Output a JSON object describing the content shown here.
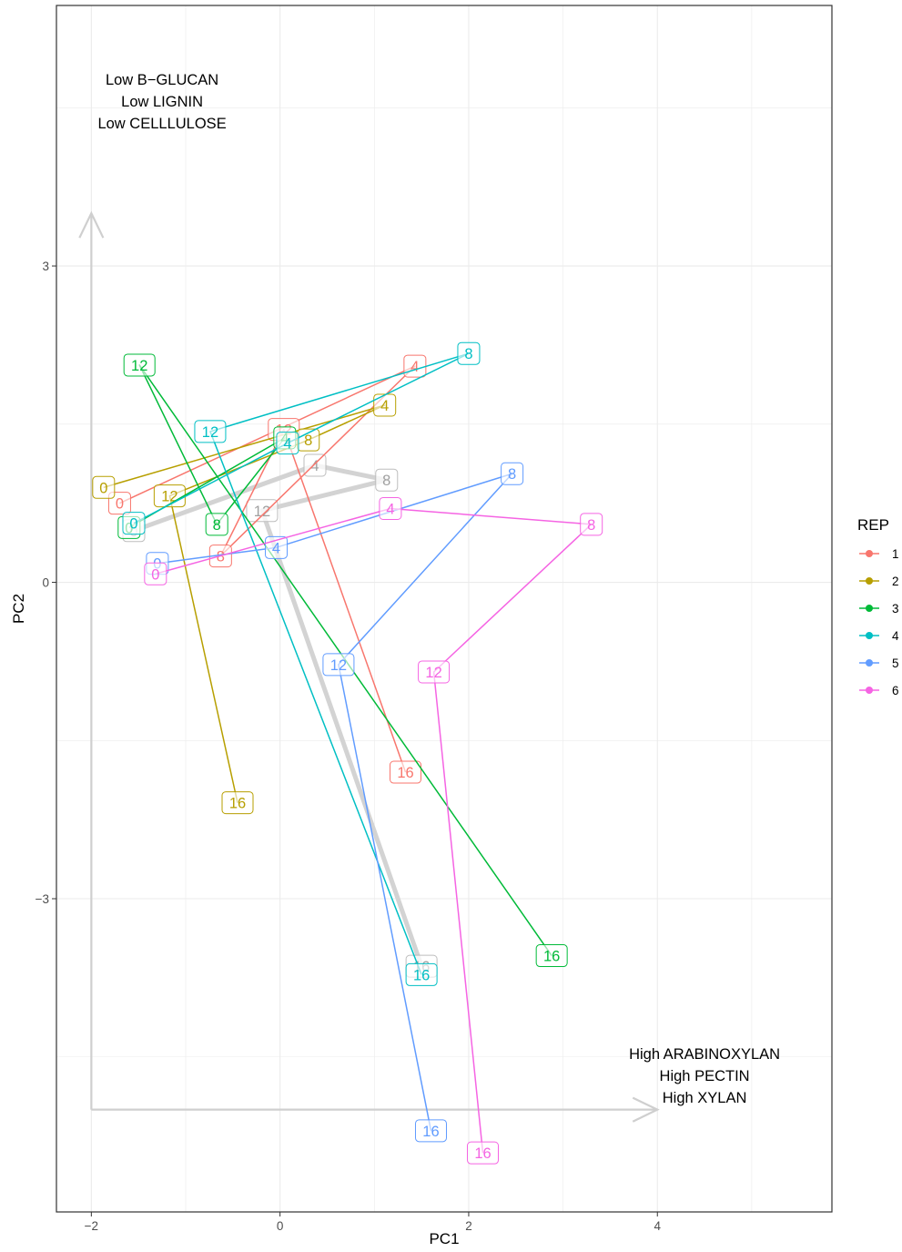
{
  "chart_data": {
    "type": "line",
    "xlabel": "PC1",
    "ylabel": "PC2",
    "xlim": [
      -2.37,
      5.85
    ],
    "ylim": [
      -5.97,
      5.47
    ],
    "xticks": [
      -2,
      0,
      2,
      4
    ],
    "xtick_labels": [
      "−2",
      "0",
      "2",
      "4"
    ],
    "yticks": [
      -3,
      0,
      3
    ],
    "ytick_labels": [
      "−3",
      "0",
      "3"
    ],
    "grid": true,
    "legend": {
      "title": "REP",
      "position": "right",
      "entries": [
        "1",
        "2",
        "3",
        "4",
        "5",
        "6"
      ]
    },
    "series": [
      {
        "name": "1",
        "color": "#F8766D",
        "points": [
          {
            "x": -1.7,
            "y": 0.75,
            "label": "0"
          },
          {
            "x": 1.43,
            "y": 2.05,
            "label": "4"
          },
          {
            "x": -0.63,
            "y": 0.25,
            "label": "8"
          },
          {
            "x": 0.04,
            "y": 1.45,
            "label": "12"
          },
          {
            "x": 1.33,
            "y": -1.8,
            "label": "16"
          }
        ]
      },
      {
        "name": "2",
        "color": "#B79F00",
        "points": [
          {
            "x": -1.87,
            "y": 0.9,
            "label": "0"
          },
          {
            "x": 1.11,
            "y": 1.68,
            "label": "4"
          },
          {
            "x": 0.3,
            "y": 1.35,
            "label": "8"
          },
          {
            "x": -1.17,
            "y": 0.82,
            "label": "12"
          },
          {
            "x": -0.45,
            "y": -2.09,
            "label": "16"
          }
        ]
      },
      {
        "name": "3",
        "color": "#00BA38",
        "points": [
          {
            "x": -1.6,
            "y": 0.52,
            "label": "0"
          },
          {
            "x": 0.05,
            "y": 1.37,
            "label": "4"
          },
          {
            "x": -0.67,
            "y": 0.55,
            "label": "8"
          },
          {
            "x": -1.49,
            "y": 2.06,
            "label": "12"
          },
          {
            "x": 2.88,
            "y": -3.54,
            "label": "16"
          }
        ]
      },
      {
        "name": "4",
        "color": "#00BFC4",
        "points": [
          {
            "x": -1.55,
            "y": 0.56,
            "label": "0"
          },
          {
            "x": 0.08,
            "y": 1.32,
            "label": "4"
          },
          {
            "x": 2.0,
            "y": 2.17,
            "label": "8"
          },
          {
            "x": -0.74,
            "y": 1.43,
            "label": "12"
          },
          {
            "x": 1.5,
            "y": -3.72,
            "label": "16"
          }
        ]
      },
      {
        "name": "5",
        "color": "#619CFF",
        "points": [
          {
            "x": -1.3,
            "y": 0.18,
            "label": "0"
          },
          {
            "x": -0.04,
            "y": 0.33,
            "label": "4"
          },
          {
            "x": 2.46,
            "y": 1.03,
            "label": "8"
          },
          {
            "x": 0.62,
            "y": -0.78,
            "label": "12"
          },
          {
            "x": 1.6,
            "y": -5.2,
            "label": "16"
          }
        ]
      },
      {
        "name": "6",
        "color": "#F564E3",
        "points": [
          {
            "x": -1.32,
            "y": 0.08,
            "label": "0"
          },
          {
            "x": 1.17,
            "y": 0.7,
            "label": "4"
          },
          {
            "x": 3.3,
            "y": 0.55,
            "label": "8"
          },
          {
            "x": 1.63,
            "y": -0.85,
            "label": "12"
          },
          {
            "x": 2.15,
            "y": -5.41,
            "label": "16"
          }
        ]
      }
    ],
    "mean_series": {
      "color": "#D3D3D3",
      "points": [
        {
          "x": -1.55,
          "y": 0.49,
          "label": "0"
        },
        {
          "x": 0.37,
          "y": 1.11,
          "label": "4"
        },
        {
          "x": 1.13,
          "y": 0.97,
          "label": "8"
        },
        {
          "x": -0.19,
          "y": 0.68,
          "label": "12"
        },
        {
          "x": 1.5,
          "y": -3.64,
          "label": "16"
        }
      ]
    },
    "annotations": [
      {
        "lines": [
          "Low B−GLUCAN",
          "Low LIGNIN",
          "Low CELLLULOSE"
        ],
        "x": -1.25,
        "y": 4.72
      },
      {
        "lines": [
          "High ARABINOXYLAN",
          "High PECTIN",
          "High XYLAN"
        ],
        "x": 4.5,
        "y": -4.52
      }
    ],
    "arrows": [
      {
        "from": [
          -2,
          -5.0
        ],
        "to": [
          -2,
          3.5
        ]
      },
      {
        "from": [
          -2,
          -5.0
        ],
        "to": [
          4,
          -5.0
        ]
      }
    ]
  }
}
